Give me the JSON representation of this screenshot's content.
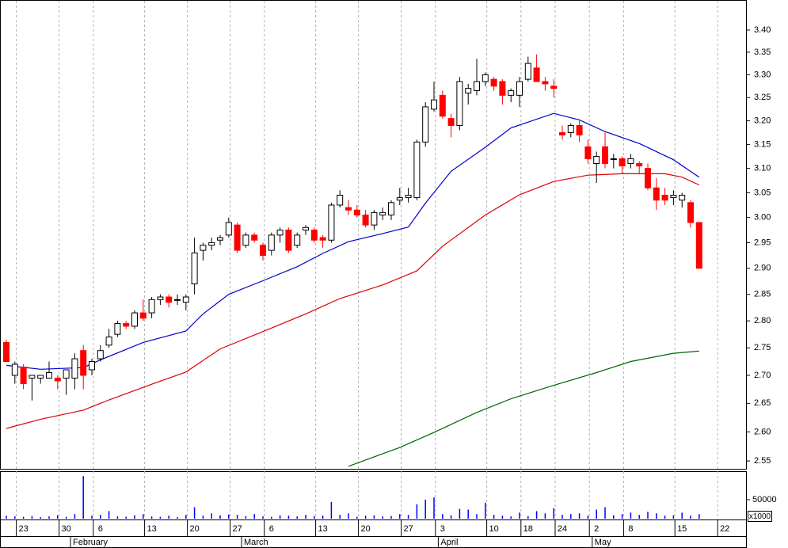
{
  "chart_data": {
    "type": "candlestick",
    "scale": "log",
    "categories": [
      null,
      null,
      "23",
      null,
      null,
      null,
      null,
      "30",
      null,
      null,
      null,
      "6",
      null,
      null,
      null,
      null,
      null,
      "13",
      null,
      null,
      null,
      null,
      "20",
      null,
      null,
      null,
      null,
      "27",
      null,
      null,
      null,
      "6",
      null,
      null,
      null,
      null,
      null,
      "13",
      null,
      null,
      null,
      null,
      "20",
      null,
      null,
      null,
      null,
      "27",
      null,
      null,
      null,
      "3",
      null,
      null,
      null,
      null,
      null,
      "10",
      null,
      null,
      null,
      "18",
      null,
      null,
      null,
      "24",
      null,
      null,
      null,
      "2",
      null,
      null,
      null,
      "8",
      null,
      null,
      null,
      null,
      null,
      "15",
      null,
      null,
      null,
      null,
      "22",
      null,
      null
    ],
    "month_labels": [
      null,
      null,
      null,
      null,
      null,
      null,
      null,
      null,
      "February",
      null,
      null,
      null,
      null,
      null,
      null,
      null,
      null,
      null,
      null,
      null,
      null,
      null,
      null,
      null,
      null,
      null,
      null,
      null,
      "March",
      null,
      null,
      null,
      null,
      null,
      null,
      null,
      null,
      null,
      null,
      null,
      null,
      null,
      null,
      null,
      null,
      null,
      null,
      null,
      null,
      null,
      null,
      "April",
      null,
      null,
      null,
      null,
      null,
      null,
      null,
      null,
      null,
      null,
      null,
      null,
      null,
      null,
      null,
      null,
      null,
      "May",
      null,
      null,
      null,
      null,
      null,
      null,
      null,
      null,
      null,
      null,
      null,
      null,
      null,
      null,
      null,
      null,
      null
    ],
    "open": [
      2.76,
      2.7,
      2.715,
      2.695,
      2.695,
      2.695,
      2.695,
      2.695,
      2.695,
      2.745,
      2.71,
      2.73,
      2.755,
      2.775,
      2.795,
      2.79,
      2.815,
      2.815,
      2.84,
      2.845,
      2.84,
      2.835,
      2.87,
      2.935,
      2.945,
      2.955,
      2.965,
      2.985,
      2.945,
      2.965,
      2.945,
      2.935,
      2.965,
      2.975,
      2.945,
      2.975,
      2.975,
      2.96,
      2.955,
      3.025,
      3.02,
      3.015,
      3.005,
      2.985,
      3.005,
      3.005,
      3.035,
      3.04,
      3.04,
      3.155,
      3.225,
      3.255,
      3.205,
      3.19,
      3.26,
      3.265,
      3.285,
      3.29,
      3.285,
      3.255,
      3.255,
      3.29,
      3.315,
      3.285,
      3.275,
      3.175,
      3.175,
      3.19,
      3.145,
      3.11,
      3.145,
      3.12,
      3.12,
      3.11,
      3.11,
      3.1,
      3.06,
      3.045,
      3.04,
      3.035,
      3.03,
      2.99,
      null,
      null,
      null,
      null,
      null
    ],
    "high": [
      2.765,
      2.725,
      2.72,
      2.7,
      2.7,
      2.725,
      2.7,
      2.71,
      2.74,
      2.755,
      2.73,
      2.755,
      2.785,
      2.8,
      2.8,
      2.82,
      2.84,
      2.845,
      2.85,
      2.85,
      2.85,
      2.85,
      2.96,
      2.95,
      2.96,
      2.965,
      3.0,
      2.99,
      2.97,
      2.97,
      2.95,
      2.97,
      2.98,
      2.98,
      2.97,
      2.985,
      2.98,
      2.965,
      3.03,
      3.055,
      3.035,
      3.025,
      3.015,
      3.015,
      3.02,
      3.035,
      3.06,
      3.06,
      3.16,
      3.24,
      3.285,
      3.265,
      3.215,
      3.295,
      3.28,
      3.335,
      3.305,
      3.295,
      3.29,
      3.27,
      3.295,
      3.34,
      3.345,
      3.295,
      3.29,
      3.19,
      3.195,
      3.2,
      3.16,
      3.135,
      3.175,
      3.13,
      3.125,
      3.13,
      3.115,
      3.11,
      3.08,
      3.06,
      3.055,
      3.05,
      3.035,
      2.99,
      null,
      null,
      null,
      null,
      null
    ],
    "low": [
      2.725,
      2.685,
      2.675,
      2.655,
      2.685,
      2.695,
      2.675,
      2.665,
      2.675,
      2.675,
      2.7,
      2.725,
      2.75,
      2.77,
      2.785,
      2.785,
      2.8,
      2.805,
      2.83,
      2.825,
      2.83,
      2.82,
      2.85,
      2.915,
      2.935,
      2.945,
      2.96,
      2.93,
      2.94,
      2.95,
      2.915,
      2.925,
      2.95,
      2.93,
      2.94,
      2.965,
      2.95,
      2.94,
      2.95,
      3.02,
      3.005,
      3.0,
      2.98,
      2.975,
      2.995,
      2.995,
      3.025,
      3.03,
      3.035,
      3.145,
      3.22,
      3.205,
      3.165,
      3.18,
      3.235,
      3.255,
      3.275,
      3.265,
      3.235,
      3.24,
      3.23,
      3.285,
      3.285,
      3.265,
      3.25,
      3.16,
      3.165,
      3.155,
      3.11,
      3.07,
      3.1,
      3.1,
      3.09,
      3.1,
      3.09,
      3.055,
      3.015,
      3.025,
      3.025,
      3.02,
      2.98,
      2.9,
      null,
      null,
      null,
      null,
      null
    ],
    "close": [
      2.725,
      2.72,
      2.685,
      2.7,
      2.7,
      2.705,
      2.69,
      2.71,
      2.73,
      2.7,
      2.725,
      2.745,
      2.77,
      2.795,
      2.79,
      2.815,
      2.805,
      2.84,
      2.845,
      2.835,
      2.84,
      2.845,
      2.93,
      2.945,
      2.95,
      2.96,
      2.99,
      2.935,
      2.965,
      2.955,
      2.925,
      2.965,
      2.975,
      2.935,
      2.965,
      2.98,
      2.955,
      2.955,
      3.025,
      3.045,
      3.015,
      3.005,
      2.985,
      3.01,
      3.01,
      3.03,
      3.04,
      3.045,
      3.155,
      3.23,
      3.245,
      3.21,
      3.19,
      3.285,
      3.27,
      3.285,
      3.3,
      3.275,
      3.255,
      3.265,
      3.285,
      3.325,
      3.285,
      3.28,
      3.27,
      3.17,
      3.19,
      3.17,
      3.12,
      3.125,
      3.11,
      3.12,
      3.105,
      3.12,
      3.105,
      3.06,
      3.035,
      3.035,
      3.045,
      3.045,
      2.99,
      2.9,
      null,
      null,
      null,
      null,
      null
    ],
    "up_color": "#ffffff",
    "down_color": "#ff0000",
    "ylim": [
      2.538,
      3.467
    ],
    "yticks": [
      2.55,
      {
        "value": 2.6,
        "label": "2.60"
      },
      2.65,
      {
        "value": 2.7,
        "label": "2.70"
      },
      2.75,
      {
        "value": 2.8,
        "label": "2.80"
      },
      2.85,
      {
        "value": 2.9,
        "label": "2.90"
      },
      2.95,
      {
        "value": 3.0,
        "label": "3.00"
      },
      3.05,
      {
        "value": 3.1,
        "label": "3.10"
      },
      3.15,
      {
        "value": 3.2,
        "label": "3.20"
      },
      3.25,
      {
        "value": 3.3,
        "label": "3.30"
      },
      3.35,
      {
        "value": 3.4,
        "label": "3.40"
      }
    ],
    "xgrid": true,
    "moving_averages": [
      {
        "color": "#0000cc",
        "x": [
          0,
          4,
          9,
          11,
          16,
          21,
          23,
          26,
          30,
          34,
          37,
          40,
          44,
          47,
          49,
          52,
          56,
          59,
          64,
          67,
          70,
          74,
          78,
          81
        ],
        "values": [
          2.718,
          2.711,
          2.714,
          2.728,
          2.76,
          2.781,
          2.813,
          2.85,
          2.876,
          2.903,
          2.929,
          2.952,
          2.968,
          2.981,
          3.029,
          3.094,
          3.144,
          3.185,
          3.216,
          3.202,
          3.177,
          3.152,
          3.118,
          3.082
        ]
      },
      {
        "color": "#dd0000",
        "x": [
          0,
          4,
          9,
          12,
          17,
          21,
          25,
          30,
          35,
          39,
          44,
          48,
          51,
          56,
          60,
          64,
          68,
          72,
          77,
          79,
          81
        ],
        "values": [
          2.606,
          2.622,
          2.638,
          2.656,
          2.684,
          2.706,
          2.748,
          2.78,
          2.813,
          2.842,
          2.868,
          2.895,
          2.943,
          3.005,
          3.046,
          3.073,
          3.086,
          3.089,
          3.089,
          3.082,
          3.066
        ]
      },
      {
        "color": "#006600",
        "x": [
          40,
          46,
          50,
          55,
          59,
          64,
          69,
          73,
          78,
          81
        ],
        "values": [
          2.541,
          2.573,
          2.599,
          2.634,
          2.658,
          2.682,
          2.705,
          2.725,
          2.74,
          2.744
        ]
      }
    ],
    "volume": {
      "type": "bar",
      "color": "#0000ff",
      "values": [
        8000,
        6000,
        5000,
        7000,
        4000,
        6000,
        9000,
        5000,
        12000,
        112000,
        8000,
        10000,
        20000,
        6000,
        5000,
        9000,
        12000,
        6000,
        5000,
        8000,
        4000,
        10000,
        30000,
        8000,
        14000,
        9000,
        11000,
        10000,
        7000,
        12000,
        6000,
        5000,
        9000,
        8000,
        6000,
        10000,
        7000,
        8000,
        44000,
        10000,
        14000,
        5000,
        8000,
        9000,
        6000,
        7000,
        12000,
        10000,
        38000,
        50000,
        56000,
        12000,
        9000,
        26000,
        24000,
        12000,
        42000,
        10000,
        8000,
        6000,
        16000,
        7000,
        20000,
        14000,
        28000,
        10000,
        12000,
        14000,
        8000,
        24000,
        30000,
        9000,
        12000,
        16000,
        10000,
        18000,
        14000,
        8000,
        9000,
        16000,
        8000,
        12000,
        null,
        null,
        null,
        null,
        null
      ],
      "ylim": [
        0,
        123000
      ],
      "yticks": [
        50000
      ],
      "multiplier_label": "x1000"
    }
  }
}
